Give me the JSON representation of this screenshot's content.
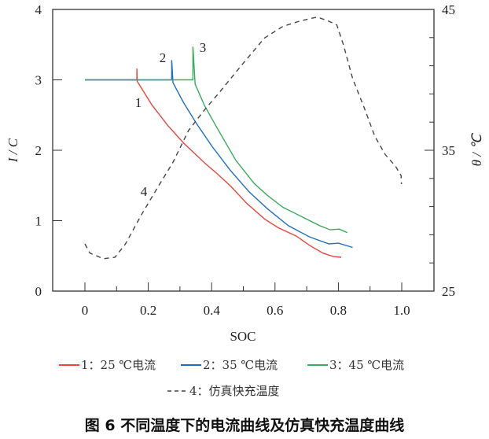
{
  "chart_data": {
    "type": "line",
    "caption": "图 6   不同温度下的电流曲线及仿真快充温度曲线",
    "xlabel": "SOC",
    "ylabel": "I / C",
    "y2label": "θ / ℃",
    "xlim": [
      -0.1,
      1.1
    ],
    "ylim": [
      0,
      4
    ],
    "y2lim": [
      25,
      45
    ],
    "xticks": [
      "0",
      "0.2",
      "0.4",
      "0.6",
      "0.8",
      "1.0"
    ],
    "yticks": [
      "0",
      "1",
      "2",
      "3",
      "4"
    ],
    "y2ticks": [
      "25",
      "35",
      "45"
    ],
    "grid": false,
    "legend_position": "bottom",
    "series": [
      {
        "name": "1：25 ℃电流",
        "label": "1",
        "color": "#e8453c",
        "axis": "left",
        "dash": false,
        "x": [
          0.0,
          0.164,
          0.164,
          0.165,
          0.212,
          0.262,
          0.312,
          0.378,
          0.419,
          0.46,
          0.51,
          0.568,
          0.61,
          0.668,
          0.709,
          0.751,
          0.784,
          0.809
        ],
        "y": [
          3.0,
          3.0,
          3.16,
          2.98,
          2.64,
          2.35,
          2.1,
          1.82,
          1.66,
          1.49,
          1.25,
          1.02,
          0.9,
          0.78,
          0.65,
          0.54,
          0.49,
          0.48
        ]
      },
      {
        "name": "2：35 ℃电流",
        "label": "2",
        "color": "#1f6fc0",
        "axis": "left",
        "dash": false,
        "x": [
          0.0,
          0.274,
          0.274,
          0.278,
          0.311,
          0.352,
          0.402,
          0.46,
          0.518,
          0.576,
          0.642,
          0.709,
          0.77,
          0.8,
          0.845
        ],
        "y": [
          3.0,
          3.0,
          3.28,
          2.96,
          2.68,
          2.38,
          2.05,
          1.71,
          1.41,
          1.17,
          0.93,
          0.77,
          0.67,
          0.68,
          0.62
        ]
      },
      {
        "name": "3：45 ℃电流",
        "label": "3",
        "color": "#3aaa5c",
        "axis": "left",
        "dash": false,
        "x": [
          0.0,
          0.341,
          0.341,
          0.348,
          0.377,
          0.418,
          0.476,
          0.534,
          0.576,
          0.625,
          0.683,
          0.741,
          0.774,
          0.803,
          0.828
        ],
        "y": [
          3.0,
          3.0,
          3.47,
          2.94,
          2.64,
          2.31,
          1.86,
          1.53,
          1.36,
          1.19,
          1.06,
          0.93,
          0.87,
          0.88,
          0.83
        ]
      },
      {
        "name": "4：仿真快充温度",
        "label": "4",
        "color": "#444444",
        "axis": "right",
        "dash": true,
        "x": [
          0.0,
          0.016,
          0.058,
          0.095,
          0.128,
          0.178,
          0.228,
          0.277,
          0.327,
          0.377,
          0.426,
          0.493,
          0.567,
          0.625,
          0.683,
          0.733,
          0.766,
          0.795,
          0.816,
          0.845,
          0.882,
          0.915,
          0.948,
          0.981,
          0.998,
          0.999
        ],
        "y": [
          28.35,
          27.7,
          27.3,
          27.4,
          28.35,
          30.4,
          32.3,
          34.1,
          36.4,
          37.85,
          39.15,
          41.0,
          42.97,
          43.8,
          44.2,
          44.46,
          44.2,
          43.9,
          42.5,
          40.1,
          38.0,
          36.0,
          34.7,
          33.85,
          33.2,
          32.6
        ]
      }
    ]
  }
}
